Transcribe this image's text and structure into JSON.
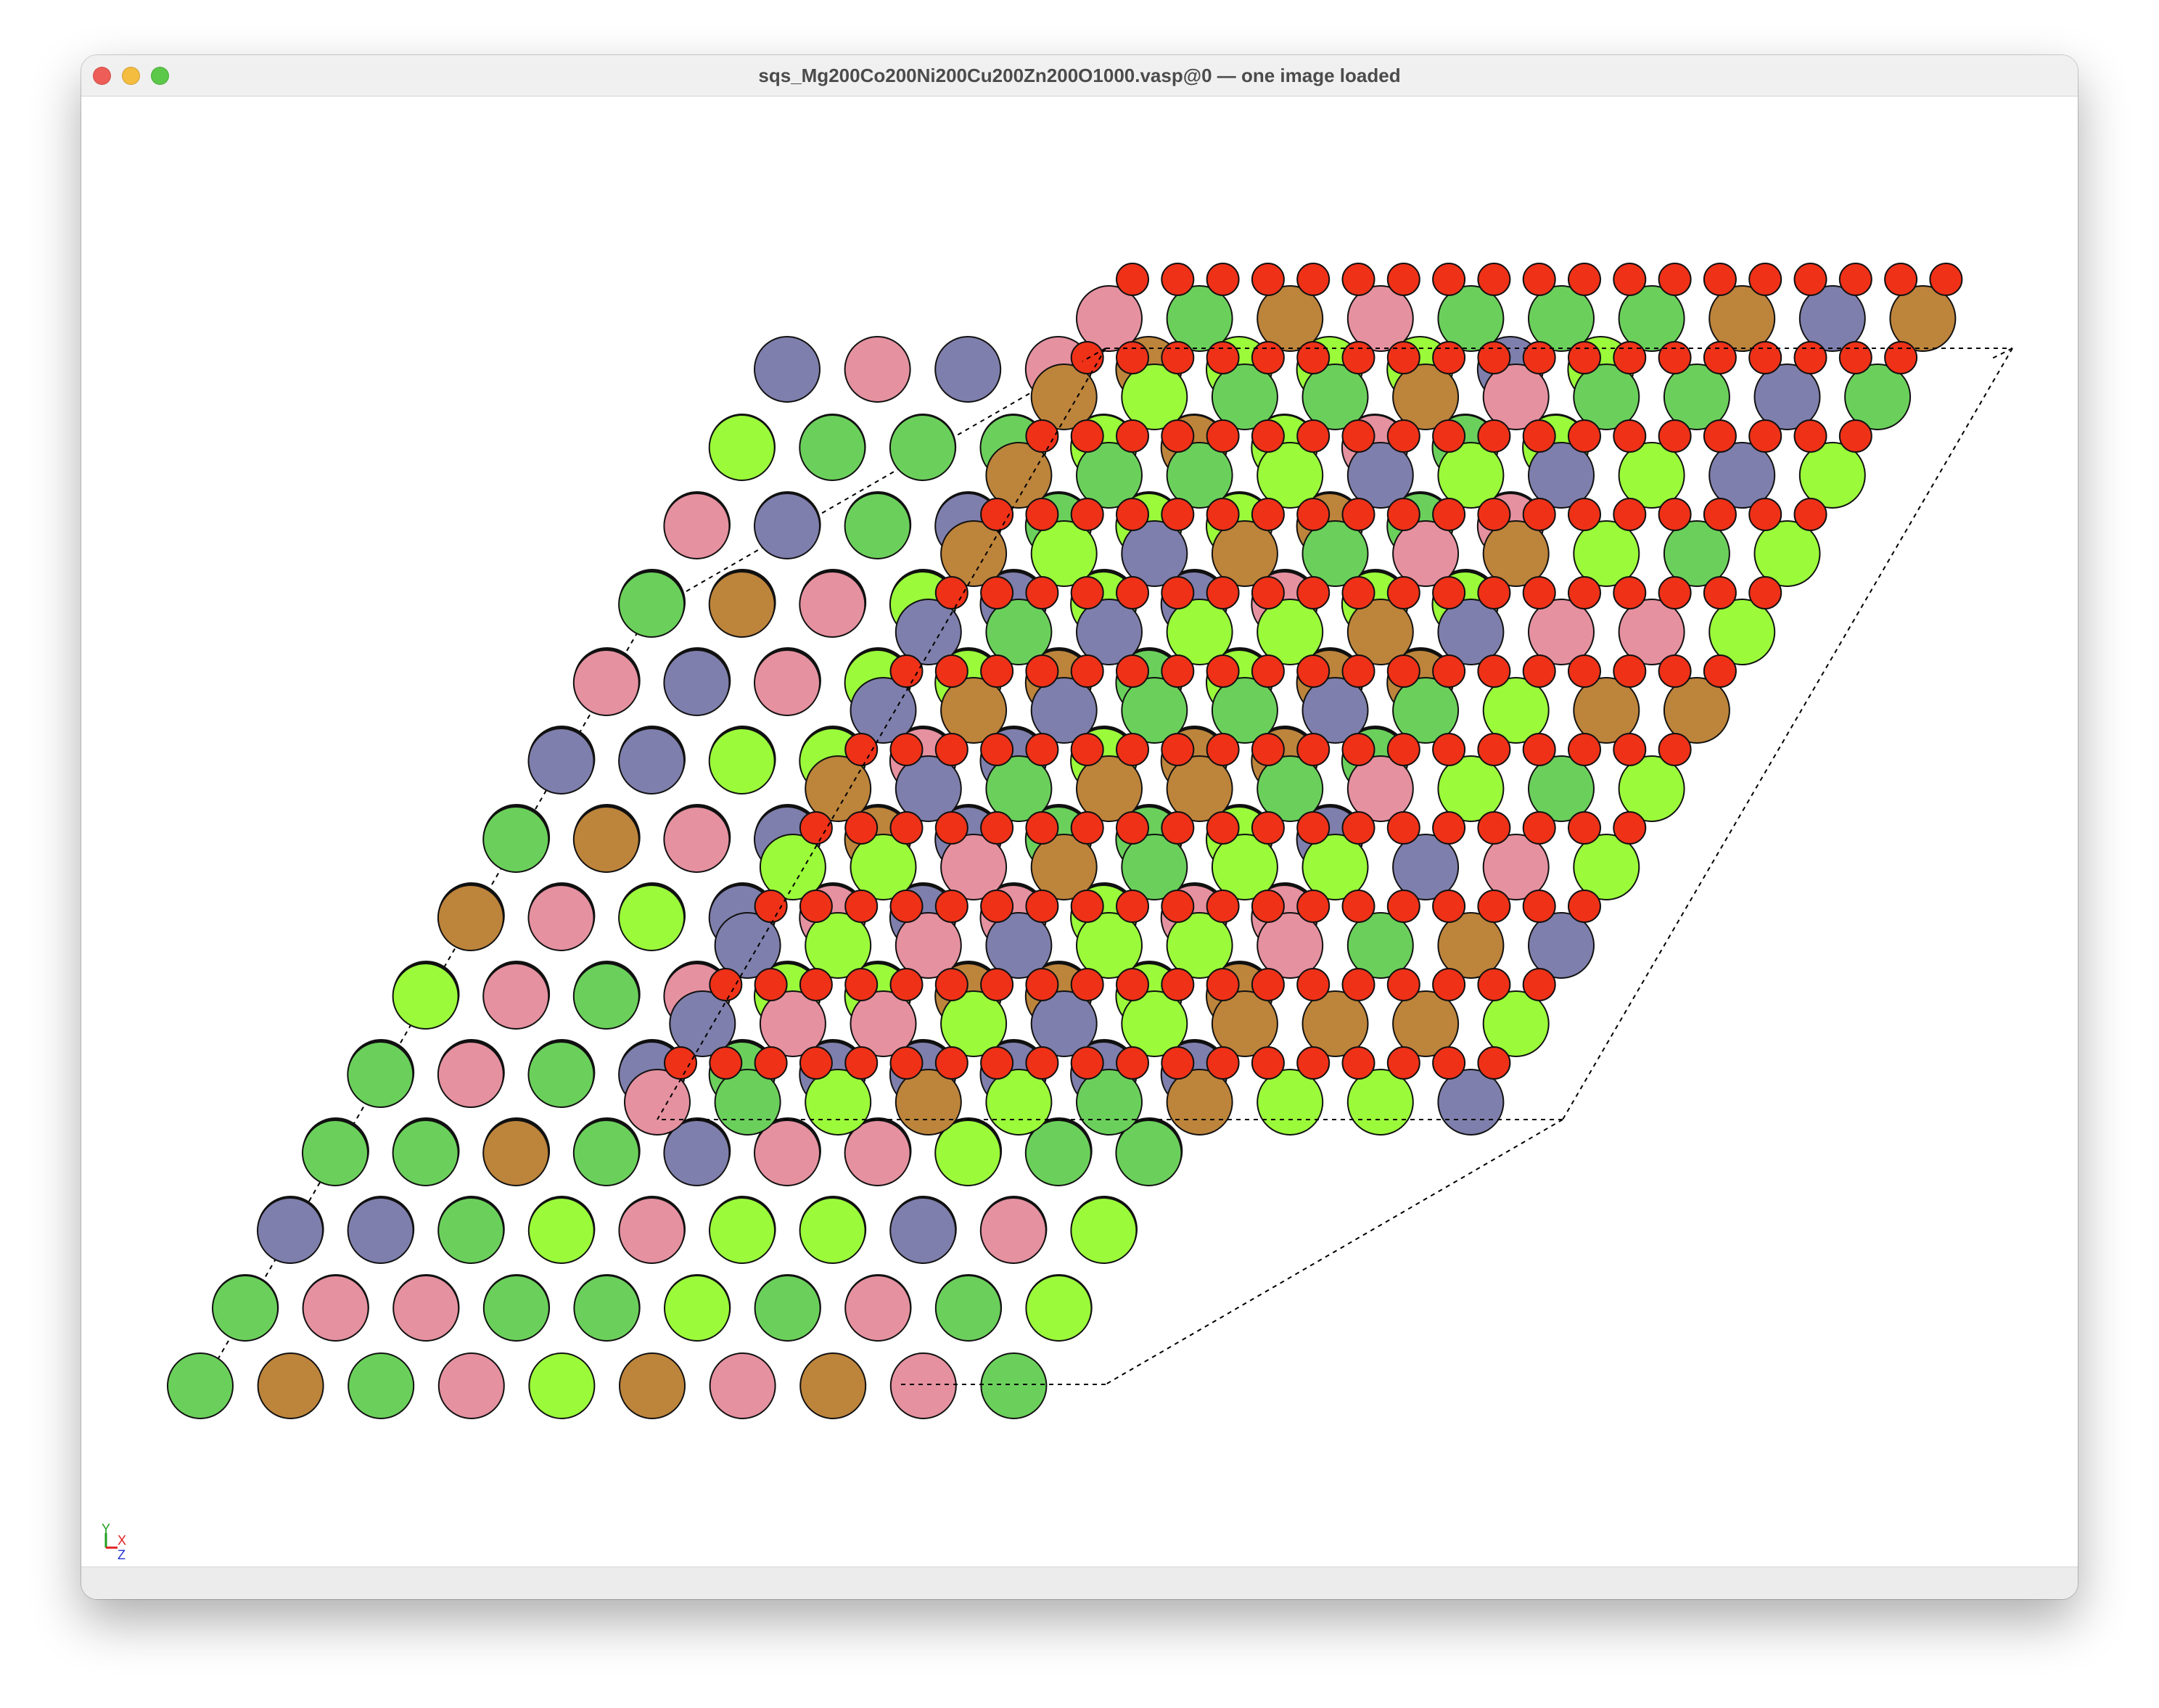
{
  "window": {
    "title": "sqs_Mg200Co200Ni200Cu200Zn200O1000.vasp@0 — one image loaded"
  },
  "axes_indicator": {
    "x_label": "X",
    "y_label": "Y",
    "z_label": "Z",
    "x_color": "#e02020",
    "y_color": "#1e9e1e",
    "z_color": "#2030d0"
  },
  "elements": {
    "Mg": "#9bfb3a",
    "Co": "#7f7fad",
    "Ni": "#6bd05b",
    "Cu": "#bd843b",
    "Zn": "#e591a0",
    "O": "#ef3118"
  },
  "cell_line_color": "#000000"
}
